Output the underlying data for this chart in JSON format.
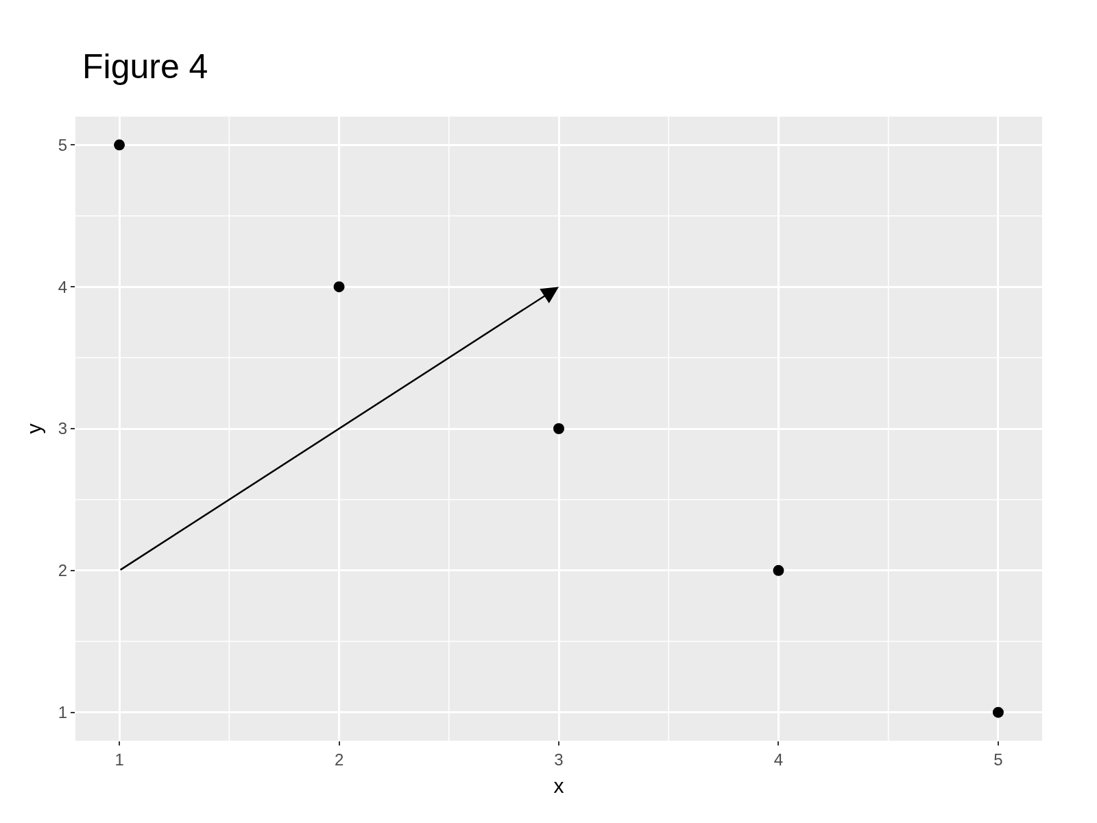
{
  "chart_data": {
    "type": "scatter",
    "title": "Figure 4",
    "xlabel": "x",
    "ylabel": "y",
    "x": [
      1,
      2,
      3,
      4,
      5
    ],
    "series": [
      {
        "color": "#000000",
        "values": [
          5,
          4,
          3,
          2,
          1
        ],
        "marker": "circle"
      }
    ],
    "xlim": [
      0.8,
      5.2
    ],
    "ylim": [
      0.8,
      5.2
    ],
    "xticks": [
      1,
      2,
      3,
      4,
      5
    ],
    "yticks": [
      1,
      2,
      3,
      4,
      5
    ],
    "grid": true,
    "legend": false
  }
}
